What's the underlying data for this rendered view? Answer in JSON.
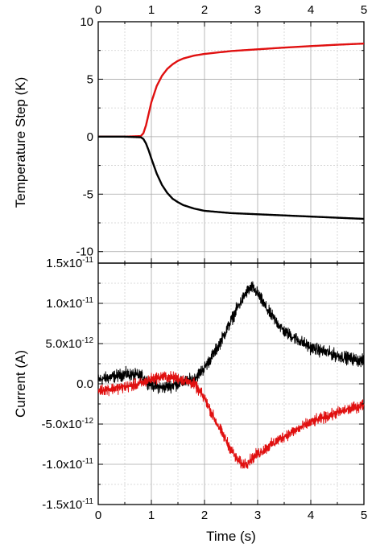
{
  "chart_data": [
    {
      "type": "line",
      "panel": "top",
      "ylabel": "Temperature Step (K)",
      "xlim": [
        0,
        5
      ],
      "ylim": [
        -11,
        10
      ],
      "x_ticks": [
        "0",
        "1",
        "2",
        "3",
        "4",
        "5"
      ],
      "y_ticks": [
        {
          "value": 10,
          "label": "10"
        },
        {
          "value": 5,
          "label": "5"
        },
        {
          "value": 0,
          "label": "0"
        },
        {
          "value": -5,
          "label": "-5"
        },
        {
          "value": -10,
          "label": "-10"
        }
      ],
      "grid": true,
      "series": [
        {
          "color": "#e01010",
          "x": [
            0,
            0.5,
            0.8,
            0.85,
            0.9,
            0.95,
            1.0,
            1.1,
            1.2,
            1.3,
            1.4,
            1.5,
            1.6,
            1.8,
            2.0,
            2.5,
            3.0,
            3.5,
            4.0,
            4.5,
            5.0
          ],
          "y": [
            0,
            0,
            0.05,
            0.3,
            1.0,
            2.0,
            3.0,
            4.4,
            5.3,
            5.9,
            6.3,
            6.6,
            6.8,
            7.05,
            7.2,
            7.45,
            7.6,
            7.75,
            7.88,
            8.0,
            8.1
          ]
        },
        {
          "color": "#000000",
          "x": [
            0,
            0.5,
            0.8,
            0.85,
            0.9,
            0.95,
            1.0,
            1.1,
            1.2,
            1.3,
            1.4,
            1.5,
            1.6,
            1.8,
            2.0,
            2.5,
            3.0,
            3.5,
            4.0,
            4.5,
            5.0
          ],
          "y": [
            0,
            0,
            -0.05,
            -0.2,
            -0.6,
            -1.2,
            -1.9,
            -3.2,
            -4.2,
            -4.9,
            -5.4,
            -5.7,
            -5.95,
            -6.25,
            -6.45,
            -6.65,
            -6.75,
            -6.85,
            -6.95,
            -7.05,
            -7.15
          ]
        }
      ]
    },
    {
      "type": "line",
      "panel": "bottom",
      "xlabel": "Time (s)",
      "ylabel": "Current (A)",
      "xlim": [
        0,
        5
      ],
      "ylim": [
        -1.5e-11,
        1.5e-11
      ],
      "x_ticks": [
        "0",
        "1",
        "2",
        "3",
        "4",
        "5"
      ],
      "y_ticks": [
        {
          "value": 1.5e-11,
          "mant": "1.5x10",
          "exp": "-11"
        },
        {
          "value": 1e-11,
          "mant": "1.0x10",
          "exp": "-11"
        },
        {
          "value": 5e-12,
          "mant": "5.0x10",
          "exp": "-12"
        },
        {
          "value": 0,
          "mant": "0.0",
          "exp": ""
        },
        {
          "value": -5e-12,
          "mant": "-5.0x10",
          "exp": "-12"
        },
        {
          "value": -1e-11,
          "mant": "-1.0x10",
          "exp": "-11"
        },
        {
          "value": -1.5e-11,
          "mant": "-1.5x10",
          "exp": "-11"
        }
      ],
      "grid": true,
      "series": [
        {
          "color": "#000000",
          "noise": 1.1e-12,
          "x": [
            0,
            0.5,
            0.8,
            1.0,
            1.2,
            1.5,
            1.8,
            2.0,
            2.2,
            2.4,
            2.6,
            2.8,
            2.9,
            3.0,
            3.2,
            3.5,
            4.0,
            4.5,
            5.0
          ],
          "y": [
            5e-13,
            1.2e-12,
            1e-12,
            -1e-13,
            -5e-13,
            0,
            6e-13,
            2e-12,
            4e-12,
            6.5e-12,
            9.2e-12,
            1.15e-11,
            1.2e-11,
            1.12e-11,
            9e-12,
            6.5e-12,
            4.5e-12,
            3.5e-12,
            2.8e-12
          ]
        },
        {
          "color": "#e01010",
          "noise": 1e-12,
          "x": [
            0,
            0.5,
            0.8,
            1.0,
            1.2,
            1.5,
            1.8,
            2.0,
            2.2,
            2.4,
            2.6,
            2.7,
            2.8,
            3.0,
            3.5,
            4.0,
            4.5,
            5.0
          ],
          "y": [
            -8e-13,
            -4e-13,
            0,
            6e-13,
            9e-13,
            7e-13,
            0,
            -1.8e-12,
            -4.5e-12,
            -7e-12,
            -9.3e-12,
            -1e-11,
            -9.8e-12,
            -8.7e-12,
            -6.5e-12,
            -4.8e-12,
            -3.6e-12,
            -2.6e-12
          ]
        }
      ]
    }
  ]
}
